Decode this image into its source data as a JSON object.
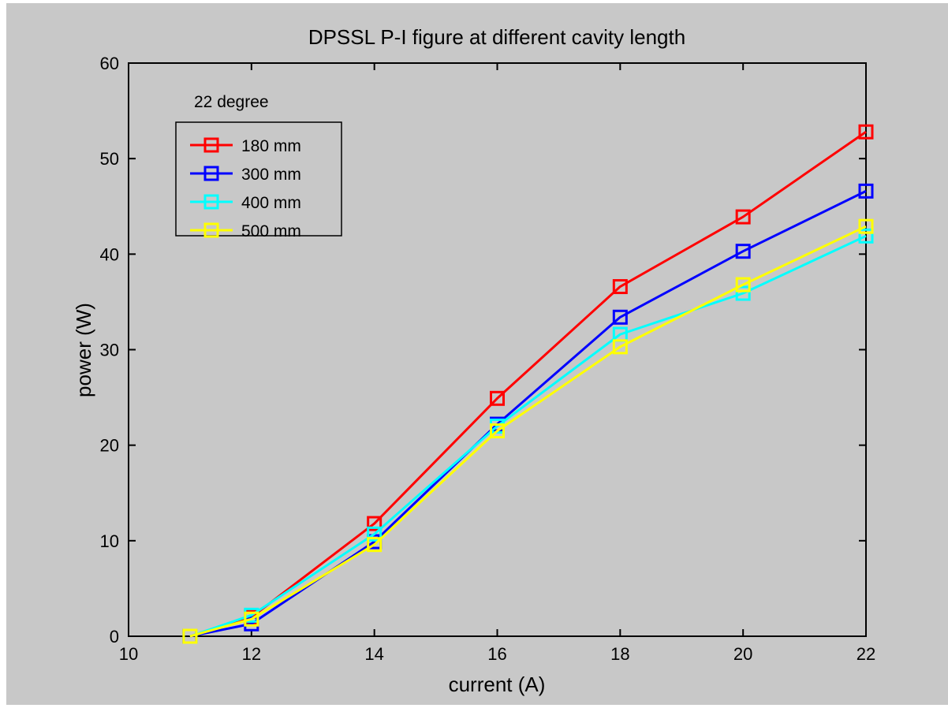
{
  "chart_data": {
    "type": "line",
    "title": "DPSSL P-I figure at  different cavity length",
    "xlabel": "current (A)",
    "ylabel": "power (W)",
    "xlim": [
      10,
      22
    ],
    "ylim": [
      0,
      60
    ],
    "xticks": [
      10,
      12,
      14,
      16,
      18,
      20,
      22
    ],
    "yticks": [
      0,
      10,
      20,
      30,
      40,
      50,
      60
    ],
    "grid": false,
    "legend_title": "22 degree",
    "legend_position": "top-left",
    "marker": "square",
    "series": [
      {
        "name": "180 mm",
        "color": "#ff0000",
        "x": [
          11,
          12,
          14,
          16,
          18,
          20,
          22
        ],
        "y": [
          0,
          2,
          11.8,
          24.9,
          36.6,
          43.9,
          52.8
        ]
      },
      {
        "name": "300 mm",
        "color": "#0000ff",
        "x": [
          11,
          12,
          14,
          16,
          18,
          20,
          22
        ],
        "y": [
          0,
          1.3,
          9.9,
          22.2,
          33.4,
          40.3,
          46.6
        ]
      },
      {
        "name": "400 mm",
        "color": "#00ffff",
        "x": [
          11,
          12,
          14,
          16,
          18,
          20,
          22
        ],
        "y": [
          0,
          2.2,
          10.7,
          22,
          31.6,
          35.9,
          41.9
        ]
      },
      {
        "name": "500 mm",
        "color": "#ffff00",
        "x": [
          11,
          12,
          14,
          16,
          18,
          20,
          22
        ],
        "y": [
          0,
          1.8,
          9.6,
          21.5,
          30.3,
          36.8,
          42.9
        ]
      }
    ]
  }
}
